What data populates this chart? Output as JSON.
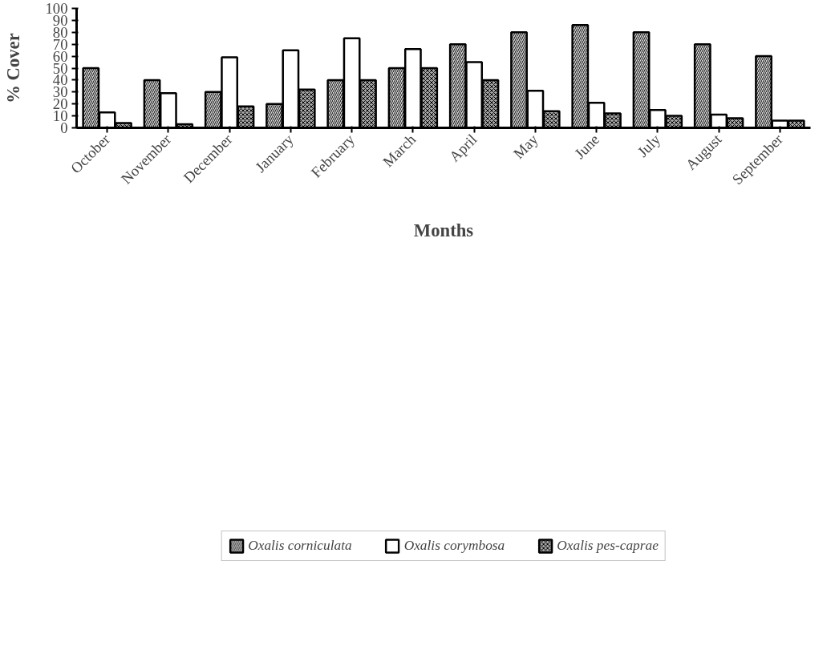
{
  "chart_data": {
    "type": "bar",
    "xlabel": "Months",
    "ylabel": "% Cover",
    "categories": [
      "October",
      "November",
      "December",
      "January",
      "February",
      "March",
      "April",
      "May",
      "June",
      "July",
      "August",
      "September"
    ],
    "series": [
      {
        "name": "Oxalis corniculata",
        "color": "#d9d9d9",
        "values": [
          50,
          40,
          30,
          20,
          40,
          50,
          70,
          80,
          86,
          80,
          70,
          60
        ]
      },
      {
        "name": "Oxalis corymbosa",
        "color": "#ffffff",
        "values": [
          13,
          29,
          59,
          65,
          75,
          66,
          55,
          31,
          21,
          15,
          11,
          6
        ]
      },
      {
        "name": "Oxalis pes-caprae",
        "color": "#a6a6a6",
        "values": [
          4,
          3,
          18,
          32,
          40,
          50,
          40,
          14,
          12,
          10,
          8,
          6
        ]
      }
    ],
    "ylim": [
      0,
      100
    ],
    "yticks": [
      0,
      10,
      20,
      30,
      40,
      50,
      60,
      70,
      80,
      90,
      100
    ],
    "grid": false,
    "legend": "bottom"
  }
}
